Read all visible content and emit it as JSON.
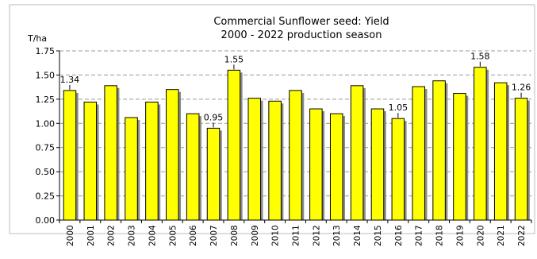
{
  "chart_data": {
    "type": "bar",
    "title": "Commercial Sunflower seed: Yield",
    "subtitle": "2000 - 2022 production season",
    "ylabel": "T/ha",
    "xlabel": "",
    "ylim": [
      0,
      1.75
    ],
    "yticks": [
      "0.00",
      "0.25",
      "0.50",
      "0.75",
      "1.00",
      "1.25",
      "1.50",
      "1.75"
    ],
    "grid": true,
    "legend": "none",
    "bar_color": "#ffff00",
    "bar_stroke": "#000000",
    "categories": [
      "2000",
      "2001",
      "2002",
      "2003",
      "2004",
      "2005",
      "2006",
      "2007",
      "2008",
      "2009",
      "2010",
      "2011",
      "2012",
      "2013",
      "2014",
      "2015",
      "2016",
      "2017",
      "2018",
      "2019",
      "2020",
      "2021",
      "2022"
    ],
    "values": [
      1.34,
      1.22,
      1.39,
      1.06,
      1.22,
      1.35,
      1.1,
      0.95,
      1.55,
      1.26,
      1.23,
      1.34,
      1.15,
      1.1,
      1.39,
      1.15,
      1.05,
      1.38,
      1.44,
      1.31,
      1.58,
      1.42,
      1.26
    ],
    "annotations": [
      {
        "category": "2000",
        "label": "1.34"
      },
      {
        "category": "2007",
        "label": "0.95"
      },
      {
        "category": "2008",
        "label": "1.55"
      },
      {
        "category": "2016",
        "label": "1.05"
      },
      {
        "category": "2020",
        "label": "1.58"
      },
      {
        "category": "2022",
        "label": "1.26"
      }
    ]
  }
}
